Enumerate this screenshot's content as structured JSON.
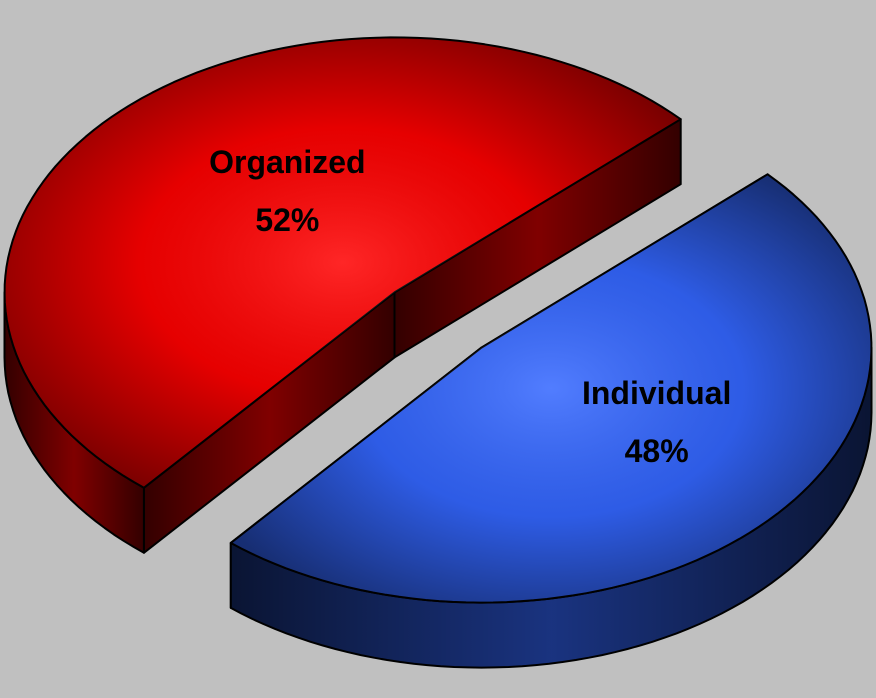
{
  "chart_data": {
    "type": "pie",
    "categories": [
      "Organized",
      "Individual"
    ],
    "values": [
      52,
      48
    ],
    "value_labels": [
      "52%",
      "48%"
    ],
    "colors": [
      "#ff0000",
      "#3366ff"
    ],
    "exploded": true,
    "three_d": true
  }
}
